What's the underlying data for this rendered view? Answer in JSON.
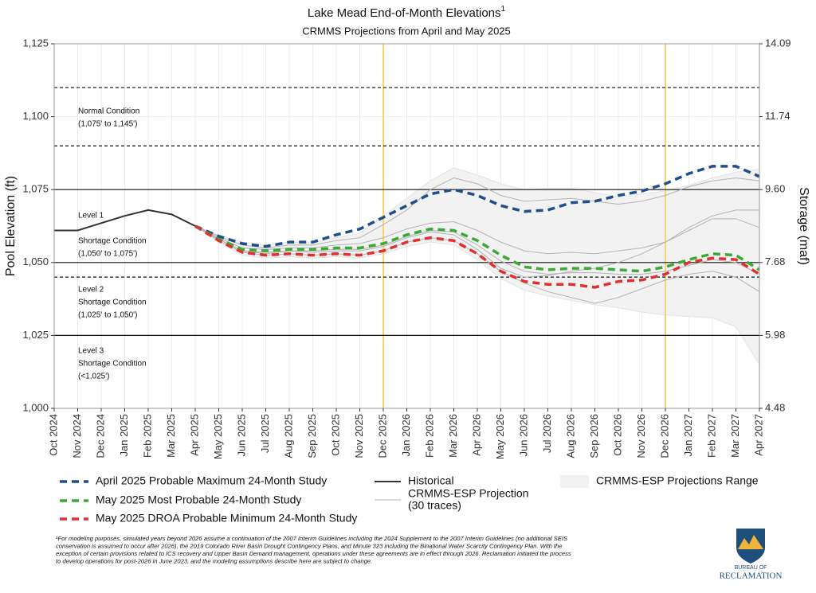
{
  "chart_data": {
    "type": "line",
    "title": "Lake Mead End-of-Month Elevations",
    "title_note": "1",
    "subtitle": "CRMMS Projections from April and May 2025",
    "y_label": "Pool Elevation (ft)",
    "y2_label": "Storage (maf)",
    "categories": [
      "Oct 2024",
      "Nov 2024",
      "Dec 2024",
      "Jan 2025",
      "Feb 2025",
      "Mar 2025",
      "Apr 2025",
      "May 2025",
      "Jun 2025",
      "Jul 2025",
      "Aug 2025",
      "Sep 2025",
      "Oct 2025",
      "Nov 2025",
      "Dec 2025",
      "Jan 2026",
      "Feb 2026",
      "Mar 2026",
      "Apr 2026",
      "May 2026",
      "Jun 2026",
      "Jul 2026",
      "Aug 2026",
      "Sep 2026",
      "Oct 2026",
      "Nov 2026",
      "Dec 2026",
      "Jan 2027",
      "Feb 2027",
      "Mar 2027",
      "Apr 2027"
    ],
    "ylim": [
      1000,
      1125
    ],
    "yticks": [
      {
        "value": 1000,
        "label": "1,000"
      },
      {
        "value": 1025,
        "label": "1,025"
      },
      {
        "value": 1050,
        "label": "1,050"
      },
      {
        "value": 1075,
        "label": "1,075"
      },
      {
        "value": 1100,
        "label": "1,100"
      },
      {
        "value": 1125,
        "label": "1,125"
      }
    ],
    "y2lim": [
      4.48,
      14.09
    ],
    "y2ticks": [
      4.48,
      5.98,
      7.68,
      {
        "value": 9.6,
        "label": "9.60"
      },
      11.74,
      14.09
    ],
    "grid": true,
    "hlines": [
      {
        "value": 1110,
        "style": "dashed"
      },
      {
        "value": 1090,
        "style": "dashed"
      },
      {
        "value": 1075,
        "style": "solid"
      },
      {
        "value": 1050,
        "style": "solid"
      },
      {
        "value": 1045,
        "style": "dashed"
      },
      {
        "value": 1025,
        "style": "solid"
      }
    ],
    "vlines": [
      "Dec 2025",
      "Dec 2026"
    ],
    "vline_color": "#f5d27a",
    "zones": [
      [
        "Normal Condition",
        "(1,075' to 1,145')"
      ],
      [
        "Level 1",
        "",
        "Shortage Condition",
        "(1,050' to 1,075')"
      ],
      [
        "Level 2",
        "Shortage Condition",
        "(1,025' to 1,050')"
      ],
      [
        "Level 3",
        "Shortage Condition",
        "(<1,025')"
      ]
    ],
    "range": {
      "name": "CRMMS-ESP Projections Range",
      "color": "#f2f2f2",
      "high": [
        null,
        null,
        null,
        null,
        null,
        null,
        1062.5,
        1059.5,
        1057,
        1056,
        1057,
        1057,
        1058.5,
        1060,
        1066,
        1072,
        1078,
        1082.5,
        1080,
        1077,
        1075,
        1075.5,
        1075.5,
        1074,
        1072.5,
        1073.5,
        1074.5,
        1076.5,
        1079,
        1081,
        1082
      ],
      "low": [
        null,
        null,
        null,
        null,
        null,
        null,
        1062.5,
        1057,
        1052.5,
        1051.5,
        1052,
        1051.5,
        1052,
        1051.5,
        1053,
        1055.5,
        1057,
        1056,
        1051,
        1044.5,
        1040.5,
        1038.5,
        1037,
        1035.5,
        1034.5,
        1033,
        1032,
        1031.5,
        1031,
        1028,
        1015
      ]
    },
    "traces_name": [
      "CRMMS-ESP Projection",
      "(30 traces)"
    ],
    "traces_color": "#b3b3b3",
    "traces": [
      [
        null,
        null,
        null,
        null,
        null,
        null,
        1062.5,
        1059,
        1056,
        1055,
        1056,
        1056,
        1057.5,
        1058.5,
        1063,
        1068,
        1075,
        1079,
        1077,
        1073,
        1071,
        1071.5,
        1072,
        1071,
        1070,
        1071,
        1073,
        1076,
        1078,
        1079,
        1078
      ],
      [
        null,
        null,
        null,
        null,
        null,
        null,
        1062.5,
        1058.5,
        1055,
        1054.5,
        1055,
        1055,
        1056,
        1056.5,
        1058.5,
        1061.5,
        1063.5,
        1064,
        1061,
        1057,
        1054,
        1053,
        1053.5,
        1053,
        1054,
        1055,
        1057,
        1061,
        1065,
        1065,
        1062
      ],
      [
        null,
        null,
        null,
        null,
        null,
        null,
        1062.5,
        1058,
        1054,
        1053.5,
        1054,
        1054,
        1054.5,
        1054.5,
        1056,
        1059,
        1061,
        1060.5,
        1056,
        1050.5,
        1047,
        1046,
        1046.5,
        1046.5,
        1046,
        1046,
        1047,
        1049,
        1051,
        1050,
        1046
      ],
      [
        null,
        null,
        null,
        null,
        null,
        null,
        1062.5,
        1057.5,
        1053.5,
        1052.5,
        1053,
        1052.5,
        1053,
        1052.5,
        1054,
        1057,
        1058.5,
        1057.5,
        1053,
        1047,
        1043,
        1040,
        1038,
        1036,
        1038,
        1041,
        1044,
        1046,
        1047,
        1045,
        1040
      ],
      [
        null,
        null,
        null,
        null,
        null,
        null,
        1062.5,
        1058,
        1054,
        1053,
        1054,
        1053.5,
        1054,
        1054,
        1055.5,
        1058.5,
        1060.5,
        1059.5,
        1054.5,
        1048,
        1045,
        1045.5,
        1047,
        1048,
        1050,
        1053,
        1057,
        1062,
        1066,
        1068,
        1068
      ]
    ],
    "series": [
      {
        "name": "Historical",
        "color": "#333333",
        "dash": false,
        "values": [
          1061,
          1061,
          1063.5,
          1066,
          1068,
          1066.5,
          1062.5,
          null,
          null,
          null,
          null,
          null,
          null,
          null,
          null,
          null,
          null,
          null,
          null,
          null,
          null,
          null,
          null,
          null,
          null,
          null,
          null,
          null,
          null,
          null,
          null
        ]
      },
      {
        "name": "April 2025 Probable Maximum 24-Month Study",
        "color": "#1f4e8c",
        "dash": true,
        "values": [
          null,
          null,
          null,
          null,
          null,
          null,
          1062.5,
          1059,
          1056.5,
          1055.5,
          1057,
          1057,
          1059.5,
          1061.5,
          1065.5,
          1069.5,
          1073.5,
          1075,
          1073,
          1069.5,
          1067.5,
          1068,
          1070.5,
          1071,
          1073,
          1074.5,
          1077,
          1080.5,
          1083,
          1083,
          1079.5
        ]
      },
      {
        "name": "May 2025 Most Probable 24-Month Study",
        "color": "#3aaa35",
        "dash": true,
        "values": [
          null,
          null,
          null,
          null,
          null,
          null,
          1062.5,
          1058,
          1054.5,
          1054,
          1054.5,
          1054.5,
          1055,
          1055,
          1056.5,
          1059.5,
          1061.5,
          1061,
          1057.5,
          1052.5,
          1048.5,
          1047.5,
          1048,
          1048,
          1047.5,
          1047,
          1048.5,
          1051,
          1053,
          1052.5,
          1047.5
        ]
      },
      {
        "name": "May 2025 DROA Probable Minimum 24-Month Study",
        "color": "#e0302f",
        "dash": true,
        "values": [
          null,
          null,
          null,
          null,
          null,
          null,
          1062.5,
          1057.5,
          1053.5,
          1052.5,
          1053,
          1052.5,
          1053,
          1052.5,
          1054,
          1057,
          1058.5,
          1057.5,
          1053,
          1047,
          1043.5,
          1042.5,
          1042.5,
          1041.5,
          1043.5,
          1044,
          1046,
          1050,
          1051.5,
          1051,
          1046
        ]
      }
    ],
    "footnote": [
      "¹For modeling purposes, simulated years beyond 2026 assume a continuation of the 2007 Interim Guidelines including the 2024 Supplement to the 2007 Interim Guidelines (no additional SEIS",
      "conservation is assumed to occur after 2026), the 2019 Colorado River Basin Drought Contingency Plans, and Minute 323 including the Binational Water Scarcity Contingency Plan. With the",
      "exception of certain provisions related to ICS recovery and Upper Basin Demand management, operations under these agreements are in effect through 2026. Reclamation initiated the process",
      "to develop operations for post-2026 in June 2023, and the modeling assumptions describe here are subject to change."
    ],
    "logo": [
      "BUREAU OF",
      "RECLAMATION"
    ]
  }
}
